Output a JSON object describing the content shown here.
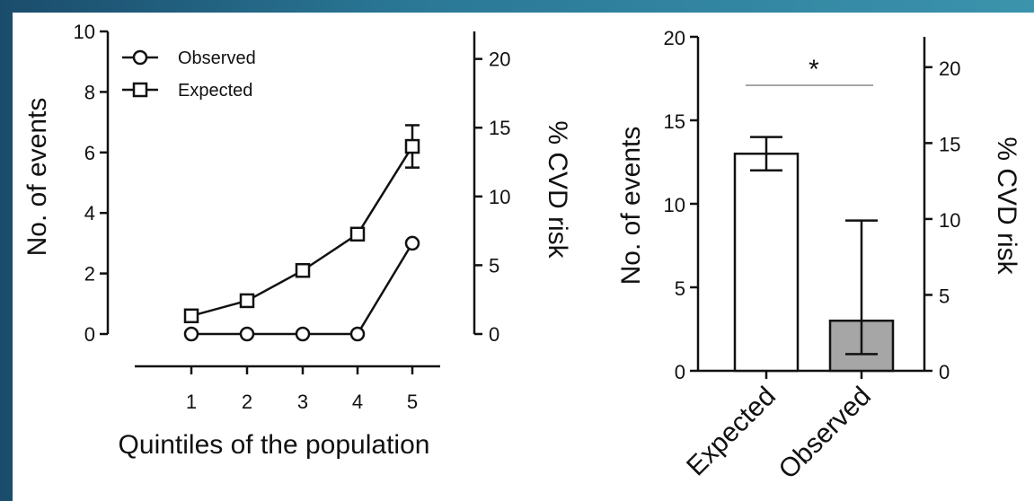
{
  "chart_data": [
    {
      "type": "line",
      "x": [
        1,
        2,
        3,
        4,
        5
      ],
      "xlabel": "Quintiles of the population",
      "ylabel": "No. of events",
      "ylabel_right": "% CVD risk",
      "ylim": [
        0,
        10
      ],
      "ylim_right": [
        0,
        22
      ],
      "yticks": [
        0,
        2,
        4,
        6,
        8,
        10
      ],
      "yticks_right": [
        0,
        5,
        10,
        15,
        20
      ],
      "legend": "top-left",
      "series": [
        {
          "name": "Observed",
          "marker": "circle",
          "values": [
            0,
            0,
            0,
            0,
            3
          ]
        },
        {
          "name": "Expected",
          "marker": "square",
          "values": [
            0.6,
            1.1,
            2.1,
            3.3,
            6.2
          ],
          "error": [
            0,
            0,
            0,
            0,
            0.7
          ]
        }
      ]
    },
    {
      "type": "bar",
      "categories": [
        "Expected",
        "Observed"
      ],
      "values": [
        13,
        3
      ],
      "error_low": [
        12,
        1
      ],
      "error_high": [
        14,
        9
      ],
      "colors": [
        "#ffffff",
        "#a6a6a6"
      ],
      "ylabel": "No. of events",
      "ylabel_right": "% CVD risk",
      "ylim": [
        0,
        20
      ],
      "ylim_right": [
        0,
        22
      ],
      "yticks": [
        0,
        5,
        10,
        15,
        20
      ],
      "yticks_right": [
        0,
        5,
        10,
        15,
        20
      ],
      "annotation": "*"
    }
  ]
}
